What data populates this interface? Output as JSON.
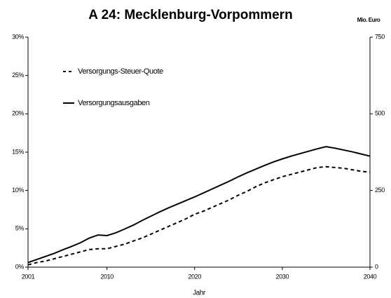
{
  "chart_data": {
    "type": "line",
    "title": "A 24: Mecklenburg-Vorpommern",
    "xlabel": "Jahr",
    "y2label": "Mio. Euro",
    "x": [
      2001,
      2002,
      2003,
      2004,
      2005,
      2006,
      2007,
      2008,
      2009,
      2010,
      2011,
      2012,
      2013,
      2014,
      2015,
      2016,
      2017,
      2018,
      2019,
      2020,
      2021,
      2022,
      2023,
      2024,
      2025,
      2026,
      2027,
      2028,
      2029,
      2030,
      2031,
      2032,
      2033,
      2034,
      2035,
      2036,
      2037,
      2038,
      2039,
      2040
    ],
    "xlim": [
      2001,
      2040
    ],
    "xticks": [
      2001,
      2010,
      2020,
      2030,
      2040
    ],
    "ylim": [
      0,
      30
    ],
    "yticks": [
      {
        "value": 0,
        "label": "0%"
      },
      {
        "value": 5,
        "label": "5%"
      },
      {
        "value": 10,
        "label": "10%"
      },
      {
        "value": 15,
        "label": "15%"
      },
      {
        "value": 20,
        "label": "20%"
      },
      {
        "value": 25,
        "label": "25%"
      },
      {
        "value": 30,
        "label": "30%"
      }
    ],
    "y2lim": [
      0,
      750
    ],
    "y2ticks": [
      0,
      250,
      500,
      750
    ],
    "legend": "upper left",
    "series": [
      {
        "name": "Versorgungs-Steuer-Quote",
        "color": "#000000",
        "dash": true,
        "values": [
          0.3,
          0.6,
          0.8,
          1.1,
          1.4,
          1.7,
          2.0,
          2.3,
          2.4,
          2.4,
          2.7,
          3.0,
          3.4,
          3.8,
          4.3,
          4.8,
          5.3,
          5.8,
          6.3,
          6.9,
          7.3,
          7.8,
          8.3,
          8.8,
          9.4,
          9.9,
          10.5,
          11.0,
          11.4,
          11.8,
          12.1,
          12.4,
          12.7,
          13.0,
          13.1,
          13.0,
          12.9,
          12.7,
          12.5,
          12.4
        ]
      },
      {
        "name": "Versorgungsausgaben",
        "color": "#000000",
        "dash": false,
        "axis": "y2",
        "values": [
          15,
          25,
          35,
          45,
          57,
          68,
          80,
          95,
          105,
          103,
          112,
          124,
          137,
          152,
          166,
          180,
          193,
          205,
          217,
          229,
          242,
          255,
          268,
          281,
          295,
          308,
          320,
          332,
          343,
          353,
          362,
          370,
          378,
          386,
          393,
          388,
          382,
          376,
          369,
          362
        ]
      }
    ]
  }
}
